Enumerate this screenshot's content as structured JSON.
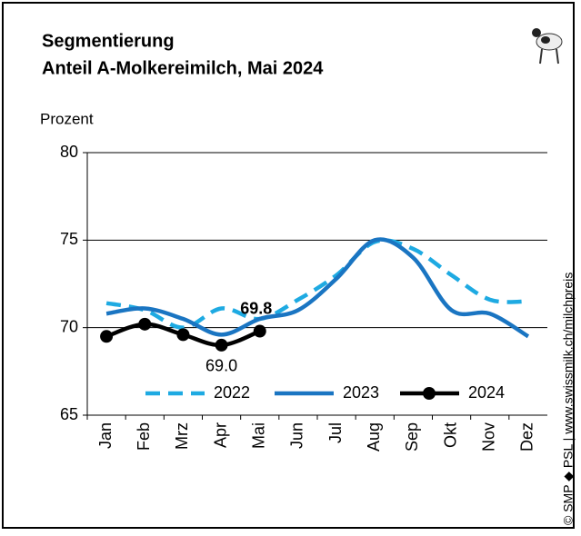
{
  "chart_data": {
    "type": "line",
    "title": "Segmentierung",
    "subtitle": "Anteil A-Molkereimilch, Mai 2024",
    "y_label": "Prozent",
    "note": "© SMP ◆ PSL | www.swissmilk.ch/milchpreis",
    "categories": [
      "Jan",
      "Feb",
      "Mrz",
      "Apr",
      "Mai",
      "Jun",
      "Jul",
      "Aug",
      "Sep",
      "Okt",
      "Nov",
      "Dez"
    ],
    "series": [
      {
        "name": "2022",
        "color": "#1eaae2",
        "dash": true,
        "values": [
          71.4,
          71.0,
          70.0,
          71.1,
          70.5,
          71.6,
          73.0,
          74.9,
          74.5,
          73.0,
          71.6,
          71.5
        ]
      },
      {
        "name": "2023",
        "color": "#1a75c2",
        "dash": false,
        "values": [
          70.8,
          71.1,
          70.5,
          69.6,
          70.5,
          71.0,
          72.8,
          75.0,
          74.0,
          71.0,
          70.8,
          69.5
        ]
      },
      {
        "name": "2024",
        "color": "#000000",
        "dash": false,
        "markers": true,
        "values": [
          69.5,
          70.2,
          69.6,
          69.0,
          69.8,
          null,
          null,
          null,
          null,
          null,
          null,
          null
        ],
        "value_labels": [
          null,
          null,
          null,
          "69.0",
          "69.8",
          null,
          null,
          null,
          null,
          null,
          null,
          null
        ]
      }
    ],
    "ylim": [
      65,
      80
    ],
    "yticks": [
      65,
      70,
      75,
      80
    ],
    "grid": true
  }
}
